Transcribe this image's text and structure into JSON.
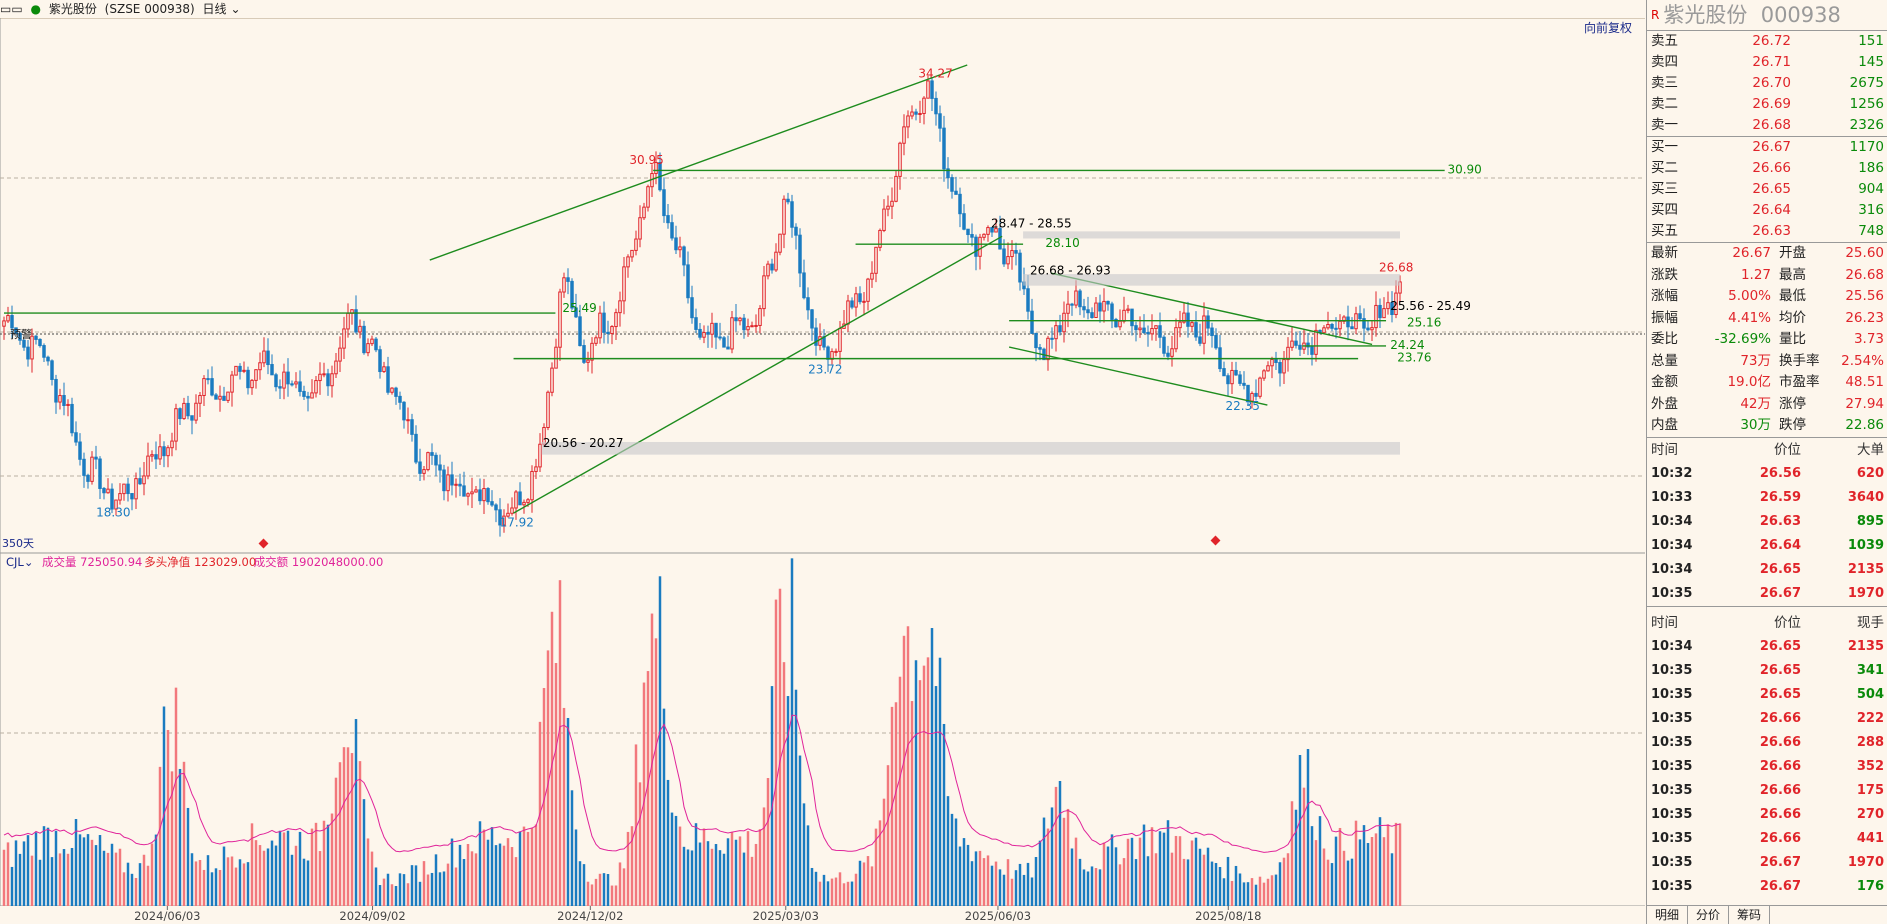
{
  "topbar": {
    "title": "紫光股份",
    "code": "(SZSE 000938)",
    "period": "日线"
  },
  "chart_top_right": "向前复权",
  "days_label": "350天",
  "alert_label": "预警",
  "indicator_bar": {
    "name": "CJL",
    "items": [
      {
        "label": "成交量 725050.94",
        "color": "#e0249a"
      },
      {
        "label": "多头净值 123029.00",
        "color": "#e0242a"
      },
      {
        "label": "成交额 1902048000.00",
        "color": "#e0249a"
      }
    ]
  },
  "chart_data": {
    "type": "candlestick",
    "x_ticks": [
      "2024/06/03",
      "2024/09/02",
      "2024/12/02",
      "2025/03/03",
      "2025/06/03",
      "2025/08/18"
    ],
    "price_annotations": [
      {
        "text": "34.27",
        "value": 34.27,
        "color": "#e0242a"
      },
      {
        "text": "30.95",
        "value": 30.95,
        "color": "#e0242a"
      },
      {
        "text": "30.90",
        "value": 30.9,
        "color": "#0a8a0a"
      },
      {
        "text": "28.47 - 28.55",
        "value": 28.5,
        "color": "#000000"
      },
      {
        "text": "28.10",
        "value": 28.1,
        "color": "#0a8a0a"
      },
      {
        "text": "26.68 - 26.93",
        "value": 26.8,
        "color": "#000000"
      },
      {
        "text": "26.68",
        "value": 26.68,
        "color": "#e0242a"
      },
      {
        "text": "25.49",
        "value": 25.49,
        "color": "#0a8a0a"
      },
      {
        "text": "25.56 - 25.49",
        "value": 25.52,
        "color": "#000000"
      },
      {
        "text": "25.16",
        "value": 25.16,
        "color": "#0a8a0a"
      },
      {
        "text": "24.24",
        "value": 24.24,
        "color": "#0a8a0a"
      },
      {
        "text": "23.76",
        "value": 23.76,
        "color": "#0a8a0a"
      },
      {
        "text": "23.72",
        "value": 23.72,
        "color": "#1a7bc0"
      },
      {
        "text": "22.35",
        "value": 22.35,
        "color": "#1a7bc0"
      },
      {
        "text": "20.56 - 20.27",
        "value": 20.4,
        "color": "#000000"
      },
      {
        "text": "18.30",
        "value": 18.3,
        "color": "#1a7bc0"
      },
      {
        "text": "17.92",
        "value": 17.92,
        "color": "#1a7bc0"
      }
    ],
    "price_anchors": [
      {
        "t": 0.0,
        "v": 25.2
      },
      {
        "t": 0.03,
        "v": 23.8
      },
      {
        "t": 0.06,
        "v": 19.5
      },
      {
        "t": 0.083,
        "v": 18.3
      },
      {
        "t": 0.1,
        "v": 19.5
      },
      {
        "t": 0.14,
        "v": 22.4
      },
      {
        "t": 0.19,
        "v": 23.5
      },
      {
        "t": 0.22,
        "v": 22.0
      },
      {
        "t": 0.25,
        "v": 25.4
      },
      {
        "t": 0.27,
        "v": 23.5
      },
      {
        "t": 0.3,
        "v": 19.8
      },
      {
        "t": 0.33,
        "v": 18.9
      },
      {
        "t": 0.365,
        "v": 17.92
      },
      {
        "t": 0.385,
        "v": 20.4
      },
      {
        "t": 0.4,
        "v": 27.0
      },
      {
        "t": 0.415,
        "v": 23.8
      },
      {
        "t": 0.44,
        "v": 26.0
      },
      {
        "t": 0.465,
        "v": 30.95
      },
      {
        "t": 0.5,
        "v": 24.2
      },
      {
        "t": 0.54,
        "v": 25.2
      },
      {
        "t": 0.56,
        "v": 29.8
      },
      {
        "t": 0.585,
        "v": 23.72
      },
      {
        "t": 0.62,
        "v": 26.7
      },
      {
        "t": 0.645,
        "v": 32.5
      },
      {
        "t": 0.66,
        "v": 34.27
      },
      {
        "t": 0.69,
        "v": 28.3
      },
      {
        "t": 0.71,
        "v": 28.6
      },
      {
        "t": 0.725,
        "v": 27.0
      },
      {
        "t": 0.745,
        "v": 23.7
      },
      {
        "t": 0.76,
        "v": 25.8
      },
      {
        "t": 0.8,
        "v": 25.4
      },
      {
        "t": 0.83,
        "v": 24.4
      },
      {
        "t": 0.86,
        "v": 25.1
      },
      {
        "t": 0.885,
        "v": 22.35
      },
      {
        "t": 0.92,
        "v": 24.1
      },
      {
        "t": 0.95,
        "v": 25.1
      },
      {
        "t": 0.98,
        "v": 24.9
      },
      {
        "t": 1.0,
        "v": 26.67
      }
    ],
    "volume_peaks": [
      {
        "t": 0.12,
        "v": 0.62
      },
      {
        "t": 0.245,
        "v": 0.6
      },
      {
        "t": 0.395,
        "v": 0.85
      },
      {
        "t": 0.465,
        "v": 1.0
      },
      {
        "t": 0.56,
        "v": 1.0
      },
      {
        "t": 0.645,
        "v": 0.98
      },
      {
        "t": 0.66,
        "v": 0.95
      },
      {
        "t": 0.755,
        "v": 0.34
      },
      {
        "t": 0.93,
        "v": 0.35
      }
    ],
    "ylim": [
      16.5,
      36.0
    ],
    "candle_count": 350
  },
  "panel": {
    "name": "紫光股份",
    "code": "000938",
    "rmark": "R",
    "asks": [
      {
        "label": "卖五",
        "price": "26.72",
        "vol": "151"
      },
      {
        "label": "卖四",
        "price": "26.71",
        "vol": "145"
      },
      {
        "label": "卖三",
        "price": "26.70",
        "vol": "2675"
      },
      {
        "label": "卖二",
        "price": "26.69",
        "vol": "1256"
      },
      {
        "label": "卖一",
        "price": "26.68",
        "vol": "2326"
      }
    ],
    "bids": [
      {
        "label": "买一",
        "price": "26.67",
        "vol": "1170"
      },
      {
        "label": "买二",
        "price": "26.66",
        "vol": "186"
      },
      {
        "label": "买三",
        "price": "26.65",
        "vol": "904"
      },
      {
        "label": "买四",
        "price": "26.64",
        "vol": "316"
      },
      {
        "label": "买五",
        "price": "26.63",
        "vol": "748"
      }
    ],
    "stats": [
      {
        "k": "最新",
        "v": "26.67",
        "vc": "red",
        "k2": "开盘",
        "v2": "25.60",
        "v2c": "red"
      },
      {
        "k": "涨跌",
        "v": "1.27",
        "vc": "red",
        "k2": "最高",
        "v2": "26.68",
        "v2c": "red"
      },
      {
        "k": "涨幅",
        "v": "5.00%",
        "vc": "red",
        "k2": "最低",
        "v2": "25.56",
        "v2c": "red"
      },
      {
        "k": "振幅",
        "v": "4.41%",
        "vc": "red",
        "k2": "均价",
        "v2": "26.23",
        "v2c": "red"
      },
      {
        "k": "委比",
        "v": "-32.69%",
        "vc": "green",
        "k2": "量比",
        "v2": "3.73",
        "v2c": "red"
      },
      {
        "k": "总量",
        "v": "73万",
        "vc": "red",
        "k2": "换手率",
        "v2": "2.54%",
        "v2c": "red"
      },
      {
        "k": "金额",
        "v": "19.0亿",
        "vc": "red",
        "k2": "市盈率",
        "v2": "48.51",
        "v2c": "red"
      },
      {
        "k": "外盘",
        "v": "42万",
        "vc": "red",
        "k2": "涨停",
        "v2": "27.94",
        "v2c": "red"
      },
      {
        "k": "内盘",
        "v": "30万",
        "vc": "green",
        "k2": "跌停",
        "v2": "22.86",
        "v2c": "green"
      }
    ],
    "big_head": [
      "时间",
      "价位",
      "大单"
    ],
    "big_orders": [
      {
        "t": "10:32",
        "p": "26.56",
        "v": "620",
        "vc": "red"
      },
      {
        "t": "10:33",
        "p": "26.59",
        "v": "3640",
        "vc": "red"
      },
      {
        "t": "10:34",
        "p": "26.63",
        "v": "895",
        "vc": "green"
      },
      {
        "t": "10:34",
        "p": "26.64",
        "v": "1039",
        "vc": "green"
      },
      {
        "t": "10:34",
        "p": "26.65",
        "v": "2135",
        "vc": "red"
      },
      {
        "t": "10:35",
        "p": "26.67",
        "v": "1970",
        "vc": "red"
      }
    ],
    "tick_head": [
      "时间",
      "价位",
      "现手"
    ],
    "ticks": [
      {
        "t": "10:34",
        "p": "26.65",
        "v": "2135",
        "vc": "red"
      },
      {
        "t": "10:35",
        "p": "26.65",
        "v": "341",
        "vc": "green"
      },
      {
        "t": "10:35",
        "p": "26.65",
        "v": "504",
        "vc": "green"
      },
      {
        "t": "10:35",
        "p": "26.66",
        "v": "222",
        "vc": "red"
      },
      {
        "t": "10:35",
        "p": "26.66",
        "v": "288",
        "vc": "red"
      },
      {
        "t": "10:35",
        "p": "26.66",
        "v": "352",
        "vc": "red"
      },
      {
        "t": "10:35",
        "p": "26.66",
        "v": "175",
        "vc": "red"
      },
      {
        "t": "10:35",
        "p": "26.66",
        "v": "270",
        "vc": "red"
      },
      {
        "t": "10:35",
        "p": "26.66",
        "v": "441",
        "vc": "red"
      },
      {
        "t": "10:35",
        "p": "26.67",
        "v": "1970",
        "vc": "red"
      },
      {
        "t": "10:35",
        "p": "26.67",
        "v": "176",
        "vc": "green"
      }
    ],
    "tabs": [
      "明细",
      "分价",
      "筹码"
    ]
  }
}
